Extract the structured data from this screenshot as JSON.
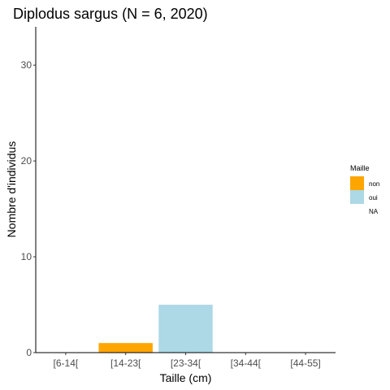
{
  "chart_data": {
    "type": "bar",
    "title": "Diplodus sargus (N = 6, 2020)",
    "xlabel": "Taille (cm)",
    "ylabel": "Nombre d'individus",
    "categories": [
      "[6-14[",
      "[14-23[",
      "[23-34[",
      "[34-44[",
      "[44-55]"
    ],
    "series": [
      {
        "name": "non",
        "values": [
          0,
          1,
          0,
          0,
          0
        ],
        "color": "#FFA500"
      },
      {
        "name": "oui",
        "values": [
          0,
          0,
          5,
          0,
          0
        ],
        "color": "#ADD8E6"
      },
      {
        "name": "NA",
        "values": [
          0,
          0,
          0,
          0,
          0
        ],
        "color": "#ffffff"
      }
    ],
    "ylim": [
      0,
      34
    ],
    "yticks": [
      0,
      10,
      20,
      30
    ],
    "grid": false,
    "legend": {
      "title": "Maille",
      "position": "right",
      "items": [
        "non",
        "oui",
        "NA"
      ]
    }
  }
}
